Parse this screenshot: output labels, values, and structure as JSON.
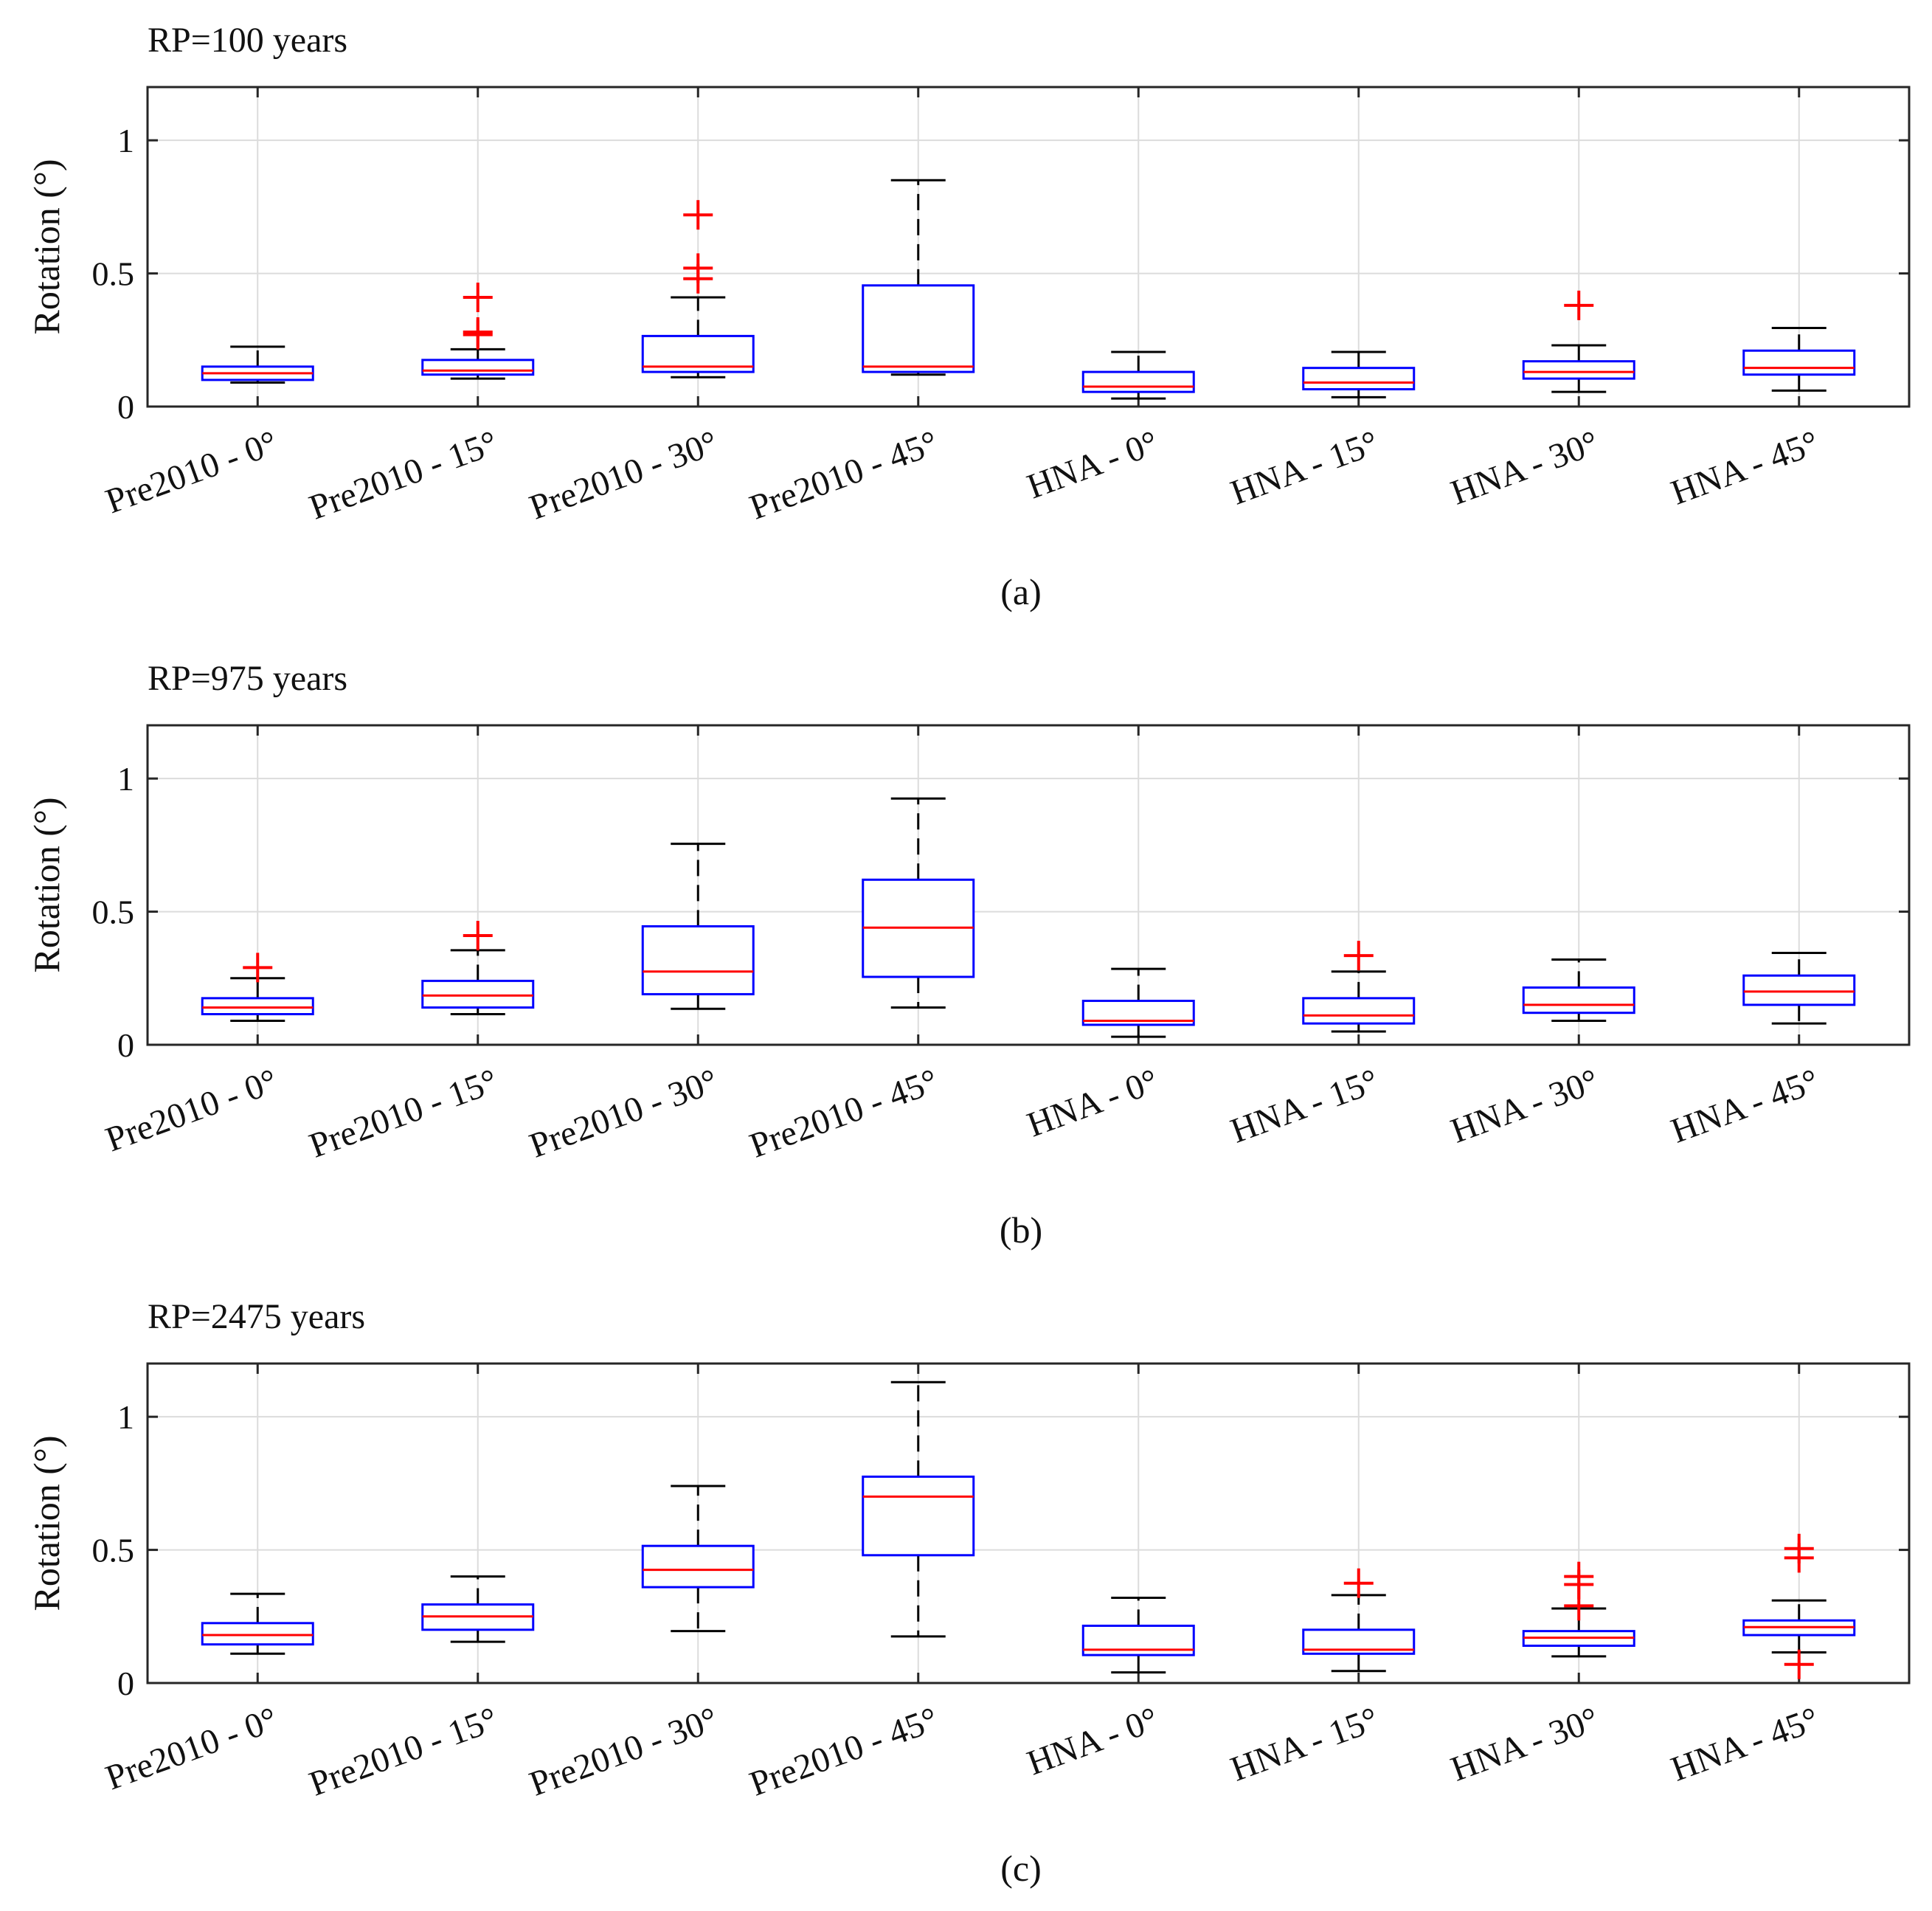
{
  "colors": {
    "box": "#0000ff",
    "median": "#ff0000",
    "outlier": "#ff0000",
    "whisker": "#000000",
    "grid": "#dcdcdc",
    "axis": "#262626"
  },
  "chart_data": [
    {
      "type": "box",
      "title": "RP=100 years",
      "caption": "(a)",
      "ylabel": "Rotation (°)",
      "ylim": [
        0,
        1.2
      ],
      "yticks": [
        0,
        0.5,
        1
      ],
      "ytick_labels": [
        "0",
        "0.5",
        "1"
      ],
      "grid": true,
      "categories": [
        "Pre2010 - 0°",
        "Pre2010 - 15°",
        "Pre2010 - 30°",
        "Pre2010 - 45°",
        "HNA - 0°",
        "HNA - 15°",
        "HNA - 30°",
        "HNA - 45°"
      ],
      "boxes": [
        {
          "whisker_low": 0.09,
          "q1": 0.1,
          "median": 0.125,
          "q3": 0.15,
          "whisker_high": 0.225,
          "outliers": []
        },
        {
          "whisker_low": 0.105,
          "q1": 0.12,
          "median": 0.135,
          "q3": 0.175,
          "whisker_high": 0.215,
          "outliers": [
            0.27,
            0.28,
            0.41
          ]
        },
        {
          "whisker_low": 0.11,
          "q1": 0.13,
          "median": 0.15,
          "q3": 0.265,
          "whisker_high": 0.41,
          "outliers": [
            0.48,
            0.52,
            0.72
          ]
        },
        {
          "whisker_low": 0.12,
          "q1": 0.13,
          "median": 0.15,
          "q3": 0.455,
          "whisker_high": 0.85,
          "outliers": []
        },
        {
          "whisker_low": 0.03,
          "q1": 0.055,
          "median": 0.075,
          "q3": 0.13,
          "whisker_high": 0.205,
          "outliers": []
        },
        {
          "whisker_low": 0.035,
          "q1": 0.065,
          "median": 0.09,
          "q3": 0.145,
          "whisker_high": 0.205,
          "outliers": []
        },
        {
          "whisker_low": 0.055,
          "q1": 0.105,
          "median": 0.13,
          "q3": 0.17,
          "whisker_high": 0.23,
          "outliers": [
            0.38
          ]
        },
        {
          "whisker_low": 0.06,
          "q1": 0.12,
          "median": 0.145,
          "q3": 0.21,
          "whisker_high": 0.295,
          "outliers": []
        }
      ]
    },
    {
      "type": "box",
      "title": "RP=975 years",
      "caption": "(b)",
      "ylabel": "Rotation (°)",
      "ylim": [
        0,
        1.2
      ],
      "yticks": [
        0,
        0.5,
        1
      ],
      "ytick_labels": [
        "0",
        "0.5",
        "1"
      ],
      "grid": true,
      "categories": [
        "Pre2010 - 0°",
        "Pre2010 - 15°",
        "Pre2010 - 30°",
        "Pre2010 - 45°",
        "HNA - 0°",
        "HNA - 15°",
        "HNA - 30°",
        "HNA - 45°"
      ],
      "boxes": [
        {
          "whisker_low": 0.09,
          "q1": 0.115,
          "median": 0.14,
          "q3": 0.175,
          "whisker_high": 0.25,
          "outliers": [
            0.29
          ]
        },
        {
          "whisker_low": 0.115,
          "q1": 0.14,
          "median": 0.185,
          "q3": 0.24,
          "whisker_high": 0.355,
          "outliers": [
            0.41
          ]
        },
        {
          "whisker_low": 0.135,
          "q1": 0.19,
          "median": 0.275,
          "q3": 0.445,
          "whisker_high": 0.755,
          "outliers": []
        },
        {
          "whisker_low": 0.14,
          "q1": 0.255,
          "median": 0.44,
          "q3": 0.62,
          "whisker_high": 0.925,
          "outliers": []
        },
        {
          "whisker_low": 0.03,
          "q1": 0.075,
          "median": 0.09,
          "q3": 0.165,
          "whisker_high": 0.285,
          "outliers": []
        },
        {
          "whisker_low": 0.05,
          "q1": 0.08,
          "median": 0.11,
          "q3": 0.175,
          "whisker_high": 0.275,
          "outliers": [
            0.335
          ]
        },
        {
          "whisker_low": 0.09,
          "q1": 0.12,
          "median": 0.15,
          "q3": 0.215,
          "whisker_high": 0.32,
          "outliers": []
        },
        {
          "whisker_low": 0.08,
          "q1": 0.15,
          "median": 0.2,
          "q3": 0.26,
          "whisker_high": 0.345,
          "outliers": []
        }
      ]
    },
    {
      "type": "box",
      "title": "RP=2475 years",
      "caption": "(c)",
      "ylabel": "Rotation (°)",
      "ylim": [
        0,
        1.2
      ],
      "yticks": [
        0,
        0.5,
        1
      ],
      "ytick_labels": [
        "0",
        "0.5",
        "1"
      ],
      "grid": true,
      "categories": [
        "Pre2010 - 0°",
        "Pre2010 - 15°",
        "Pre2010 - 30°",
        "Pre2010 - 45°",
        "HNA - 0°",
        "HNA - 15°",
        "HNA - 30°",
        "HNA - 45°"
      ],
      "boxes": [
        {
          "whisker_low": 0.11,
          "q1": 0.145,
          "median": 0.18,
          "q3": 0.225,
          "whisker_high": 0.335,
          "outliers": []
        },
        {
          "whisker_low": 0.155,
          "q1": 0.2,
          "median": 0.25,
          "q3": 0.295,
          "whisker_high": 0.4,
          "outliers": []
        },
        {
          "whisker_low": 0.195,
          "q1": 0.36,
          "median": 0.425,
          "q3": 0.515,
          "whisker_high": 0.74,
          "outliers": []
        },
        {
          "whisker_low": 0.175,
          "q1": 0.48,
          "median": 0.7,
          "q3": 0.775,
          "whisker_high": 1.13,
          "outliers": []
        },
        {
          "whisker_low": 0.04,
          "q1": 0.105,
          "median": 0.125,
          "q3": 0.215,
          "whisker_high": 0.32,
          "outliers": []
        },
        {
          "whisker_low": 0.045,
          "q1": 0.11,
          "median": 0.125,
          "q3": 0.2,
          "whisker_high": 0.33,
          "outliers": [
            0.375
          ]
        },
        {
          "whisker_low": 0.1,
          "q1": 0.14,
          "median": 0.17,
          "q3": 0.195,
          "whisker_high": 0.28,
          "outliers": [
            0.29,
            0.37,
            0.4
          ]
        },
        {
          "whisker_low": 0.115,
          "q1": 0.18,
          "median": 0.21,
          "q3": 0.235,
          "whisker_high": 0.31,
          "outliers": [
            0.07,
            0.47,
            0.505
          ]
        }
      ]
    }
  ]
}
